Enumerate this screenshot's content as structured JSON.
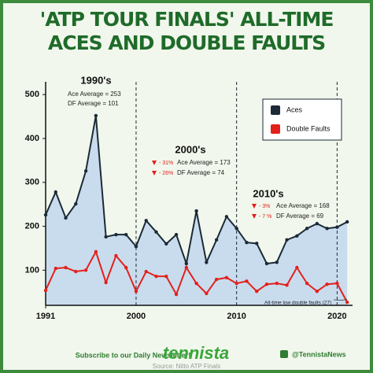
{
  "chart_data": {
    "type": "line",
    "title": "'ATP TOUR FINALS' ALL-TIME ACES AND DOUBLE FAULTS",
    "x": [
      1991,
      1992,
      1993,
      1994,
      1995,
      1996,
      1997,
      1998,
      1999,
      2000,
      2001,
      2002,
      2003,
      2004,
      2005,
      2006,
      2007,
      2008,
      2009,
      2010,
      2011,
      2012,
      2013,
      2014,
      2015,
      2016,
      2017,
      2018,
      2019,
      2020,
      2021
    ],
    "series": [
      {
        "name": "Aces",
        "color": "#1b2a36",
        "area_color": "#c9dcee",
        "values": [
          226,
          278,
          219,
          251,
          326,
          452,
          176,
          181,
          181,
          154,
          213,
          187,
          160,
          181,
          115,
          235,
          118,
          169,
          222,
          195,
          163,
          161,
          115,
          118,
          169,
          178,
          195,
          206,
          195,
          198,
          210
        ]
      },
      {
        "name": "Double Faults",
        "color": "#e3211b",
        "values": [
          54,
          104,
          106,
          97,
          100,
          142,
          72,
          133,
          106,
          52,
          97,
          86,
          86,
          45,
          106,
          70,
          47,
          79,
          83,
          70,
          75,
          52,
          68,
          70,
          66,
          106,
          70,
          52,
          68,
          70,
          27
        ]
      }
    ],
    "xlim": [
      1991,
      2021.3
    ],
    "xticks": [
      1991,
      2000,
      2010,
      2020
    ],
    "ylim": [
      20,
      520
    ],
    "yticks": [
      100,
      200,
      300,
      400,
      500
    ],
    "legend": "upper right",
    "annotations": [
      {
        "text": "1990's",
        "color": "#111111"
      },
      {
        "text": "Ace Average = 253",
        "color": "#222222"
      },
      {
        "text": "DF Average = 101",
        "color": "#222222"
      },
      {
        "text": "2000's",
        "color": "#111111"
      },
      {
        "text": "- 31%",
        "color": "#e3211b"
      },
      {
        "text": "Ace Average = 173",
        "color": "#222222"
      },
      {
        "text": "- 26%",
        "color": "#e3211b"
      },
      {
        "text": "DF Average = 74",
        "color": "#222222"
      },
      {
        "text": "2010's",
        "color": "#111111"
      },
      {
        "text": "- 3%",
        "color": "#e3211b"
      },
      {
        "text": "Ace Average = 168",
        "color": "#222222"
      },
      {
        "text": "- 7 %",
        "color": "#e3211b"
      },
      {
        "text": "DF Average = 69",
        "color": "#222222"
      },
      {
        "text": "All-time low double faults (27)",
        "color": "#222222"
      }
    ],
    "source": "Source: Nitto ATP Finals"
  },
  "footer": {
    "newsletter": "Subscribe to our Daily Newsletter!",
    "brand": "tennista",
    "handle": "@TennistaNews"
  }
}
